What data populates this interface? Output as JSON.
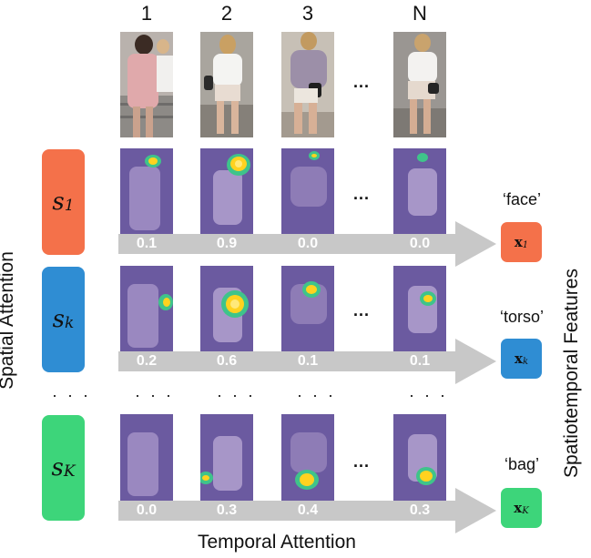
{
  "columns": [
    "1",
    "2",
    "3",
    "N"
  ],
  "column_ellipsis": "...",
  "rows": [
    {
      "spatial_label": "s",
      "spatial_sub": "1",
      "color": "#f4714a",
      "weights": [
        "0.1",
        "0.9",
        "0.0",
        "0.0"
      ],
      "feature_label": "‘face’",
      "feature_var": "x",
      "feature_sub": "1"
    },
    {
      "spatial_label": "s",
      "spatial_sub": "k",
      "color": "#2f8dd3",
      "weights": [
        "0.2",
        "0.6",
        "0.1",
        "0.1"
      ],
      "feature_label": "‘torso’",
      "feature_var": "x",
      "feature_sub": "k"
    },
    {
      "spatial_label": "s",
      "spatial_sub": "K",
      "color": "#3dd57a",
      "weights": [
        "0.0",
        "0.3",
        "0.4",
        "0.3"
      ],
      "feature_label": "‘bag’",
      "feature_var": "x",
      "feature_sub": "K"
    }
  ],
  "row_ellipsis": "· · ·",
  "axis_labels": {
    "spatial": "Spatial Attention",
    "temporal": "Temporal Attention",
    "features": "Spatiotemporal Features"
  },
  "colors": {
    "attention_overlay": "#6b5aa0",
    "arrow": "#c8c8c8",
    "heat_hot": "#ffd21f",
    "heat_warm": "#3fc48a"
  }
}
